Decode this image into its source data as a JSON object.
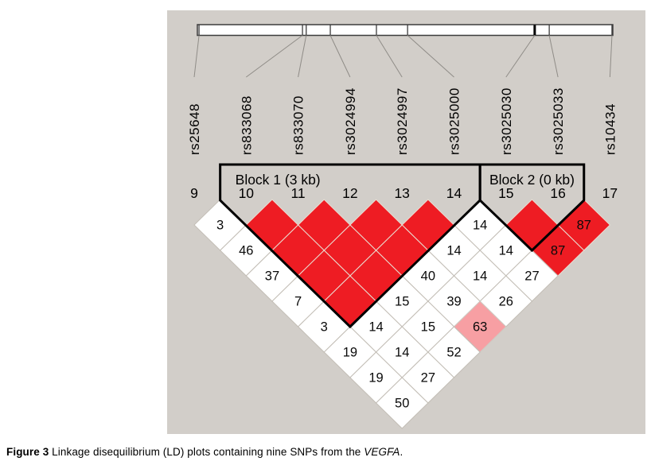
{
  "figure": {
    "caption_label": "Figure 3",
    "caption_text": " Linkage disequilibrium (LD) plots containing nine SNPs from the ",
    "caption_gene": "VEGFA",
    "caption_end": "."
  },
  "colors": {
    "panel_bg": "#d2cec9",
    "strong_ld_red": "#ee1c23",
    "moderate_ld_pink": "#f79fa3",
    "cell_white": "#ffffff",
    "block_outline": "#000000"
  },
  "chart_data": {
    "type": "heatmap",
    "description": "Haploview pairwise linkage disequilibrium (LD) plot; red diamonds without numbers indicate D' = 1 (value 100), numbers show pairwise D' x 100",
    "snp_labels": [
      "rs25648",
      "rs833068",
      "rs833070",
      "rs3024994",
      "rs3024997",
      "rs3025000",
      "rs3025030",
      "rs3025033",
      "rs10434"
    ],
    "snp_numbers": [
      9,
      10,
      11,
      12,
      13,
      14,
      15,
      16,
      17
    ],
    "blocks": [
      {
        "label": "Block 1 (3 kb)",
        "from": 10,
        "to": 14
      },
      {
        "label": "Block 2 (0 kb)",
        "from": 15,
        "to": 16
      }
    ],
    "chromosome_markers": [
      {
        "pos": 0.004,
        "thick": false
      },
      {
        "pos": 0.253,
        "thick": false
      },
      {
        "pos": 0.262,
        "thick": false
      },
      {
        "pos": 0.32,
        "thick": false
      },
      {
        "pos": 0.431,
        "thick": false
      },
      {
        "pos": 0.506,
        "thick": false
      },
      {
        "pos": 0.812,
        "thick": true
      },
      {
        "pos": 0.847,
        "thick": false
      },
      {
        "pos": 0.998,
        "thick": false
      }
    ],
    "cells": [
      {
        "i": 9,
        "j": 10,
        "value": 3,
        "shade": "white"
      },
      {
        "i": 10,
        "j": 11,
        "value": null,
        "shade": "red"
      },
      {
        "i": 11,
        "j": 12,
        "value": null,
        "shade": "red"
      },
      {
        "i": 12,
        "j": 13,
        "value": null,
        "shade": "red"
      },
      {
        "i": 13,
        "j": 14,
        "value": null,
        "shade": "red"
      },
      {
        "i": 14,
        "j": 15,
        "value": 14,
        "shade": "white"
      },
      {
        "i": 15,
        "j": 16,
        "value": null,
        "shade": "red"
      },
      {
        "i": 16,
        "j": 17,
        "value": 87,
        "shade": "red"
      },
      {
        "i": 9,
        "j": 11,
        "value": 46,
        "shade": "white"
      },
      {
        "i": 10,
        "j": 12,
        "value": null,
        "shade": "red"
      },
      {
        "i": 11,
        "j": 13,
        "value": null,
        "shade": "red"
      },
      {
        "i": 12,
        "j": 14,
        "value": null,
        "shade": "red"
      },
      {
        "i": 13,
        "j": 15,
        "value": 14,
        "shade": "white"
      },
      {
        "i": 14,
        "j": 16,
        "value": 14,
        "shade": "white"
      },
      {
        "i": 15,
        "j": 17,
        "value": 87,
        "shade": "red"
      },
      {
        "i": 9,
        "j": 12,
        "value": 37,
        "shade": "white"
      },
      {
        "i": 10,
        "j": 13,
        "value": null,
        "shade": "red"
      },
      {
        "i": 11,
        "j": 14,
        "value": null,
        "shade": "red"
      },
      {
        "i": 12,
        "j": 15,
        "value": 40,
        "shade": "white"
      },
      {
        "i": 13,
        "j": 16,
        "value": 14,
        "shade": "white"
      },
      {
        "i": 14,
        "j": 17,
        "value": 27,
        "shade": "white"
      },
      {
        "i": 9,
        "j": 13,
        "value": 7,
        "shade": "white"
      },
      {
        "i": 10,
        "j": 14,
        "value": null,
        "shade": "red"
      },
      {
        "i": 11,
        "j": 15,
        "value": 15,
        "shade": "white"
      },
      {
        "i": 12,
        "j": 16,
        "value": 39,
        "shade": "white"
      },
      {
        "i": 13,
        "j": 17,
        "value": 26,
        "shade": "white"
      },
      {
        "i": 9,
        "j": 14,
        "value": 3,
        "shade": "white"
      },
      {
        "i": 10,
        "j": 15,
        "value": 14,
        "shade": "white"
      },
      {
        "i": 11,
        "j": 16,
        "value": 15,
        "shade": "white"
      },
      {
        "i": 12,
        "j": 17,
        "value": 63,
        "shade": "pink"
      },
      {
        "i": 9,
        "j": 15,
        "value": 19,
        "shade": "white"
      },
      {
        "i": 10,
        "j": 16,
        "value": 14,
        "shade": "white"
      },
      {
        "i": 11,
        "j": 17,
        "value": 52,
        "shade": "white"
      },
      {
        "i": 9,
        "j": 16,
        "value": 19,
        "shade": "white"
      },
      {
        "i": 10,
        "j": 17,
        "value": 27,
        "shade": "white"
      },
      {
        "i": 9,
        "j": 17,
        "value": 50,
        "shade": "white"
      }
    ]
  }
}
